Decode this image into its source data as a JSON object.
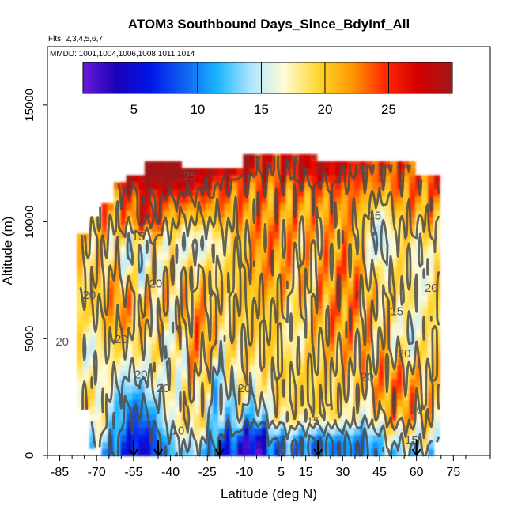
{
  "chart_data": {
    "type": "heatmap",
    "title": "ATOM3 Southbound Days_Since_BdyInf_All",
    "flights_label": "Flts: 2,3,4,5,6,7",
    "mmdd_label": "MMDD: 1001,1004,1006,1008,1011,1014",
    "xlabel": "Latitude (deg N)",
    "ylabel": "Altitude (m)",
    "xlim": [
      -90,
      90
    ],
    "ylim": [
      0,
      17500
    ],
    "x_ticks": [
      -85,
      -70,
      -55,
      -40,
      -25,
      -10,
      5,
      15,
      30,
      45,
      60,
      75
    ],
    "x_minor_ticks": [
      -90,
      -80,
      -75,
      -65,
      -60,
      -50,
      -45,
      -35,
      -30,
      -20,
      -15,
      -5,
      0,
      10,
      20,
      25,
      35,
      40,
      50,
      55,
      65,
      70,
      80,
      85,
      90
    ],
    "y_ticks": [
      0,
      5000,
      10000,
      15000
    ],
    "colorbar": {
      "range": [
        1,
        30
      ],
      "ticks": [
        5,
        10,
        15,
        20,
        25
      ],
      "colors": [
        "#6a1bd6",
        "#1a00b8",
        "#0016e8",
        "#1060f0",
        "#18b4ff",
        "#aee6ff",
        "#fffbd6",
        "#ffd830",
        "#ff9a00",
        "#ff2800",
        "#d40000",
        "#a01818"
      ]
    },
    "contour_levels": [
      10,
      15,
      20,
      25
    ],
    "contour_labels": [
      {
        "value": "25",
        "x": -32,
        "y": 11800
      },
      {
        "value": "20",
        "x": 38,
        "y": 12100
      },
      {
        "value": "15",
        "x": 43,
        "y": 10100
      },
      {
        "value": "15",
        "x": -53,
        "y": 9200
      },
      {
        "value": "20",
        "x": -46,
        "y": 7200
      },
      {
        "value": "20",
        "x": -73,
        "y": 6700
      },
      {
        "value": "20",
        "x": -84,
        "y": 4700
      },
      {
        "value": "20",
        "x": -60,
        "y": 4800
      },
      {
        "value": "20",
        "x": -52,
        "y": 3300
      },
      {
        "value": "20",
        "x": -43,
        "y": 2700
      },
      {
        "value": "20",
        "x": -10,
        "y": 2700
      },
      {
        "value": "20",
        "x": 40,
        "y": 3200
      },
      {
        "value": "20",
        "x": 55,
        "y": 4200
      },
      {
        "value": "20",
        "x": 66,
        "y": 7000
      },
      {
        "value": "20",
        "x": 60,
        "y": 1800
      },
      {
        "value": "15",
        "x": 52,
        "y": 6000
      },
      {
        "value": "15",
        "x": 18,
        "y": 1300
      },
      {
        "value": "10",
        "x": -37,
        "y": 900
      },
      {
        "value": "15",
        "x": 58,
        "y": 500
      }
    ],
    "profile_markers": [
      -55,
      -45,
      -20,
      20,
      60
    ]
  }
}
